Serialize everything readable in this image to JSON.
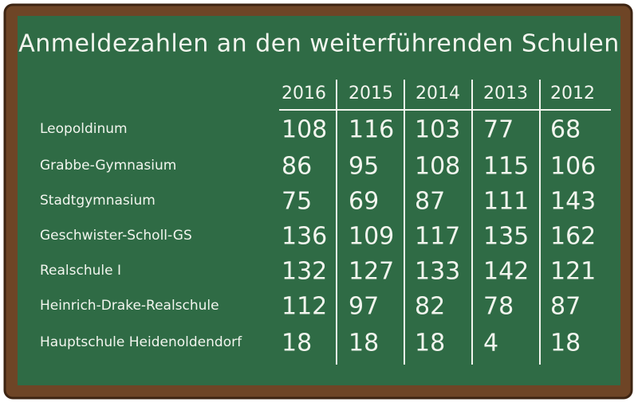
{
  "title": "Anmeldezahlen an den weiterführenden Schulen",
  "table": {
    "columns": [
      "2016",
      "2015",
      "2014",
      "2013",
      "2012"
    ],
    "rows": [
      {
        "label": "Leopoldinum",
        "values": [
          108,
          116,
          103,
          77,
          68
        ]
      },
      {
        "label": "Grabbe-Gymnasium",
        "values": [
          86,
          95,
          108,
          115,
          106
        ]
      },
      {
        "label": "Stadtgymnasium",
        "values": [
          75,
          69,
          87,
          111,
          143
        ]
      },
      {
        "label": "Geschwister-Scholl-GS",
        "values": [
          136,
          109,
          117,
          135,
          162
        ]
      },
      {
        "label": "Realschule I",
        "values": [
          132,
          127,
          133,
          142,
          121
        ]
      },
      {
        "label": "Heinrich-Drake-Realschule",
        "values": [
          112,
          97,
          82,
          78,
          87
        ]
      },
      {
        "label": "Hauptschule Heidenoldendorf",
        "values": [
          18,
          18,
          18,
          4,
          18
        ]
      }
    ]
  }
}
